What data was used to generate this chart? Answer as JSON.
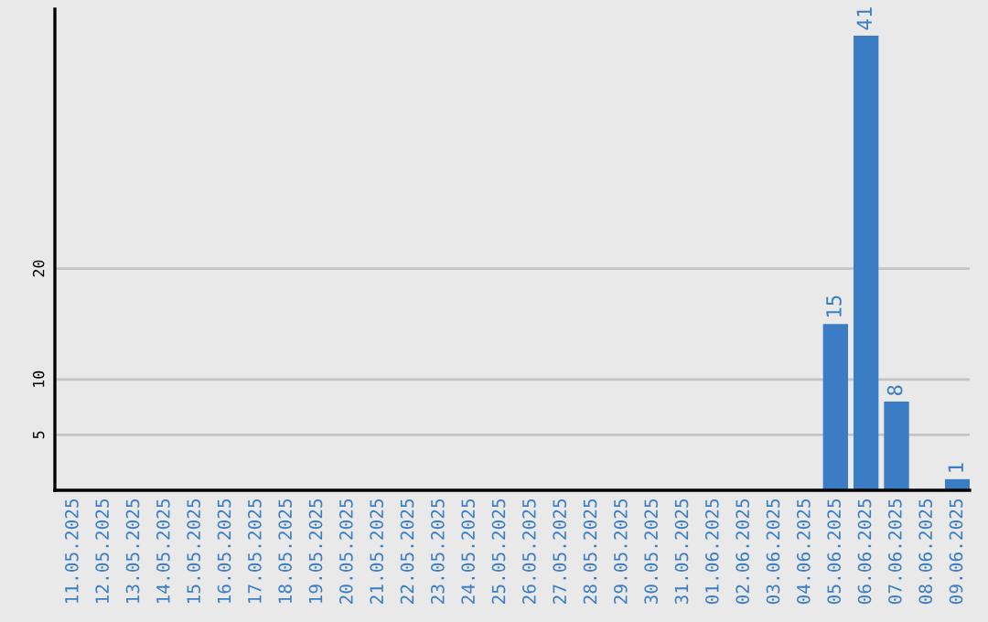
{
  "chart_data": {
    "type": "bar",
    "categories": [
      "11.05.2025",
      "12.05.2025",
      "13.05.2025",
      "14.05.2025",
      "15.05.2025",
      "16.05.2025",
      "17.05.2025",
      "18.05.2025",
      "19.05.2025",
      "20.05.2025",
      "21.05.2025",
      "22.05.2025",
      "23.05.2025",
      "24.05.2025",
      "25.05.2025",
      "26.05.2025",
      "27.05.2025",
      "28.05.2025",
      "29.05.2025",
      "30.05.2025",
      "31.05.2025",
      "01.06.2025",
      "02.06.2025",
      "03.06.2025",
      "04.06.2025",
      "05.06.2025",
      "06.06.2025",
      "07.06.2025",
      "08.06.2025",
      "09.06.2025"
    ],
    "values": [
      0,
      0,
      0,
      0,
      0,
      0,
      0,
      0,
      0,
      0,
      0,
      0,
      0,
      0,
      0,
      0,
      0,
      0,
      0,
      0,
      0,
      0,
      0,
      0,
      0,
      15,
      41,
      8,
      0,
      1
    ],
    "value_labels": [
      null,
      null,
      null,
      null,
      null,
      null,
      null,
      null,
      null,
      null,
      null,
      null,
      null,
      null,
      null,
      null,
      null,
      null,
      null,
      null,
      null,
      null,
      null,
      null,
      null,
      "15",
      "41",
      "8",
      null,
      "1"
    ],
    "color": "#3b7dc4",
    "ylim": [
      0,
      43.4
    ],
    "yticks": [
      5,
      10,
      20
    ],
    "grid": "y"
  }
}
